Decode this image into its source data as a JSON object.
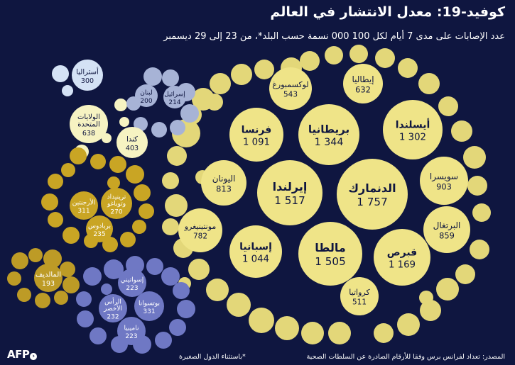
{
  "title": "كوفيد-19: معدل الانتشار في العالم",
  "subtitle": "عدد الإصابات على مدى 7 أيام لكل 100 000 نسمة حسب البلد*، من 23 إلى 29 ديسمبر",
  "source": "المصدر: تعداد لفرانس برس وفقا للأرقام الصادرة عن السلطات الصحية",
  "note": "*باستثناء الدول الصغيرة",
  "logo": "AFP",
  "colors": {
    "background": "#0f1640",
    "europe": "#efe488",
    "europe_small": "#e3d779",
    "north_america": "#f6f3c2",
    "middle_east": "#a7b3d6",
    "oceania": "#d4e2f5",
    "latin_america": "#c9a524",
    "asia": "#bd9b26",
    "africa": "#6f78c4",
    "label_dark": "#0f1640",
    "label_light": "#ffffff"
  },
  "chart_data": {
    "type": "bubble",
    "title": "كوفيد-19: معدل الانتشار في العالم",
    "unit": "عدد الإصابات على مدى 7 أيام لكل 100 000 نسمة",
    "series": [
      {
        "region": "europe",
        "points": [
          {
            "country": "الدنمارك",
            "value": "1 757"
          },
          {
            "country": "إيرلندا",
            "value": "1 517"
          },
          {
            "country": "مالطا",
            "value": "1 505"
          },
          {
            "country": "بريطانيا",
            "value": "1 344"
          },
          {
            "country": "أيسلندا",
            "value": "1 302"
          },
          {
            "country": "قبرص",
            "value": "1 169"
          },
          {
            "country": "فرنسا",
            "value": "1 091"
          },
          {
            "country": "إسبانيا",
            "value": "1 044"
          },
          {
            "country": "سويسرا",
            "value": "903"
          },
          {
            "country": "البرتغال",
            "value": "859"
          },
          {
            "country": "اليونان",
            "value": "813"
          },
          {
            "country": "مونتينيغرو",
            "value": "782"
          },
          {
            "country": "إيطاليا",
            "value": "632"
          },
          {
            "country": "لوكسمبورغ",
            "value": "543"
          },
          {
            "country": "كرواتيا",
            "value": "511"
          }
        ]
      },
      {
        "region": "north_america",
        "points": [
          {
            "country": "الولايات المتحدة",
            "value": "638"
          },
          {
            "country": "كندا",
            "value": "403"
          }
        ]
      },
      {
        "region": "middle_east",
        "points": [
          {
            "country": "إسرائيل",
            "value": "214"
          },
          {
            "country": "لبنان",
            "value": "200"
          }
        ]
      },
      {
        "region": "oceania",
        "points": [
          {
            "country": "أستراليا",
            "value": "300"
          }
        ]
      },
      {
        "region": "latin_america",
        "points": [
          {
            "country": "الأرجنتين",
            "value": "311"
          },
          {
            "country": "ترينيداد وتوباغو",
            "value": "270"
          },
          {
            "country": "بربادوس",
            "value": "235"
          }
        ]
      },
      {
        "region": "asia",
        "points": [
          {
            "country": "المالديف",
            "value": "193"
          }
        ]
      },
      {
        "region": "africa",
        "points": [
          {
            "country": "بوتسوانا",
            "value": "331"
          },
          {
            "country": "الرأس الأخضر",
            "value": "232"
          },
          {
            "country": "إسواتيني",
            "value": "223"
          },
          {
            "country": "ناميبيا",
            "value": "223"
          }
        ]
      }
    ]
  }
}
